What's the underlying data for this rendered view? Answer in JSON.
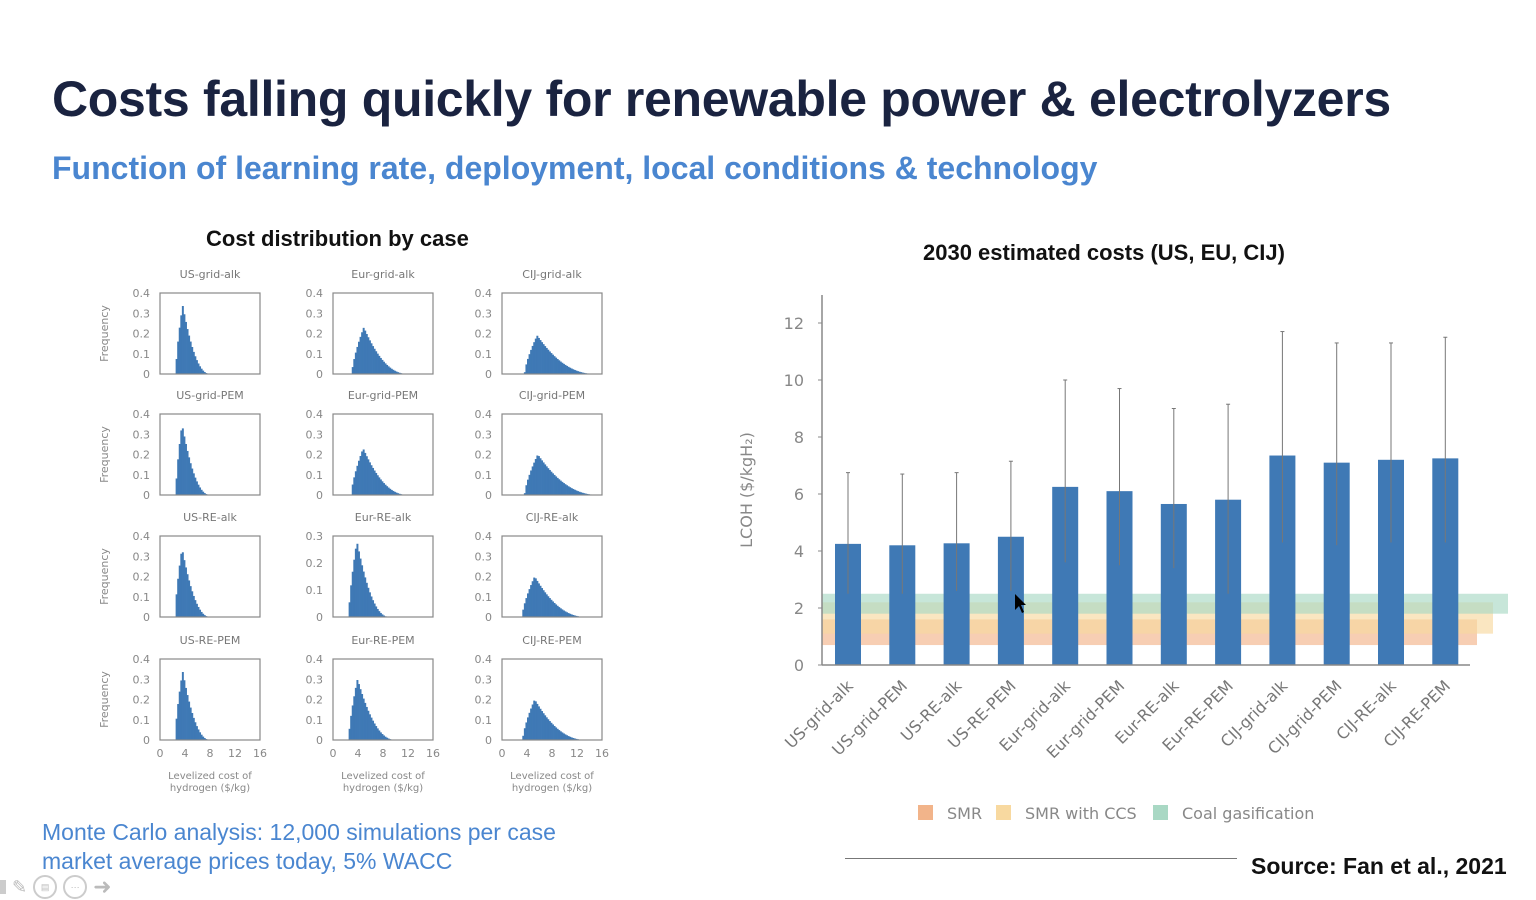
{
  "slide": {
    "title": "Costs falling quickly for renewable power & electrolyzers",
    "subtitle": "Function of learning rate, deployment, local conditions & technology",
    "note_line1": "Monte Carlo analysis: 12,000 simulations per case",
    "note_line2": "market average prices today, 5% WACC",
    "source": "Source: Fan et al., 2021"
  },
  "toolbar": {
    "icons": [
      "pointer-icon",
      "pen-icon",
      "subtitles-icon",
      "more-icon",
      "next-arrow-icon"
    ]
  },
  "chart_data": [
    {
      "type": "histogram",
      "title": "Cost distribution by case",
      "ylabel": "Frequency",
      "xlabel": "Levelized cost of hydrogen ($/kg)",
      "xlim": [
        0,
        16
      ],
      "xticks": [
        "0",
        "4",
        "8",
        "12",
        "16"
      ],
      "color": "#3f79b5",
      "panels": [
        {
          "name": "US-grid-alk",
          "ymax": 0.4,
          "yticks": [
            "0.4",
            "0.3",
            "0.2",
            "0.1",
            "0"
          ],
          "start": 2.5,
          "peak": 3.6,
          "peak_freq": 0.34,
          "end": 8
        },
        {
          "name": "Eur-grid-alk",
          "ymax": 0.4,
          "yticks": [
            "0.4",
            "0.3",
            "0.2",
            "0.1",
            "0"
          ],
          "start": 3,
          "peak": 4.9,
          "peak_freq": 0.23,
          "end": 12
        },
        {
          "name": "CIJ-grid-alk",
          "ymax": 0.4,
          "yticks": [
            "0.4",
            "0.3",
            "0.2",
            "0.1",
            "0"
          ],
          "start": 3.6,
          "peak": 5.6,
          "peak_freq": 0.19,
          "end": 15
        },
        {
          "name": "US-grid-PEM",
          "ymax": 0.4,
          "yticks": [
            "0.4",
            "0.3",
            "0.2",
            "0.1",
            "0"
          ],
          "start": 2.5,
          "peak": 3.5,
          "peak_freq": 0.35,
          "end": 8
        },
        {
          "name": "Eur-grid-PEM",
          "ymax": 0.4,
          "yticks": [
            "0.4",
            "0.3",
            "0.2",
            "0.1",
            "0"
          ],
          "start": 2.9,
          "peak": 4.8,
          "peak_freq": 0.23,
          "end": 12
        },
        {
          "name": "CIJ-grid-PEM",
          "ymax": 0.4,
          "yticks": [
            "0.4",
            "0.3",
            "0.2",
            "0.1",
            "0"
          ],
          "start": 3.6,
          "peak": 5.7,
          "peak_freq": 0.2,
          "end": 15.5
        },
        {
          "name": "US-RE-alk",
          "ymax": 0.4,
          "yticks": [
            "0.4",
            "0.3",
            "0.2",
            "0.1",
            "0"
          ],
          "start": 2.4,
          "peak": 3.5,
          "peak_freq": 0.34,
          "end": 8
        },
        {
          "name": "Eur-RE-alk",
          "ymax": 0.3,
          "yticks": [
            "0.3",
            "0.2",
            "0.1",
            "0"
          ],
          "start": 2.5,
          "peak": 3.8,
          "peak_freq": 0.28,
          "end": 9
        },
        {
          "name": "CIJ-RE-alk",
          "ymax": 0.4,
          "yticks": [
            "0.4",
            "0.3",
            "0.2",
            "0.1",
            "0"
          ],
          "start": 3.2,
          "peak": 5.2,
          "peak_freq": 0.2,
          "end": 13.5
        },
        {
          "name": "US-RE-PEM",
          "ymax": 0.4,
          "yticks": [
            "0.4",
            "0.3",
            "0.2",
            "0.1",
            "0"
          ],
          "start": 2.4,
          "peak": 3.6,
          "peak_freq": 0.34,
          "end": 8
        },
        {
          "name": "Eur-RE-PEM",
          "ymax": 0.4,
          "yticks": [
            "0.4",
            "0.3",
            "0.2",
            "0.1",
            "0"
          ],
          "start": 2.5,
          "peak": 3.9,
          "peak_freq": 0.3,
          "end": 10
        },
        {
          "name": "CIJ-RE-PEM",
          "ymax": 0.4,
          "yticks": [
            "0.4",
            "0.3",
            "0.2",
            "0.1",
            "0"
          ],
          "start": 3.3,
          "peak": 5.2,
          "peak_freq": 0.2,
          "end": 13.5
        }
      ]
    },
    {
      "type": "bar",
      "title": "2030 estimated costs (US, EU, CIJ)",
      "ylabel": "LCOH ($/kgH₂)",
      "ylim": [
        0,
        13
      ],
      "yticks": [
        "0",
        "2",
        "4",
        "6",
        "8",
        "10",
        "12"
      ],
      "color": "#3f79b5",
      "categories": [
        "US-grid-alk",
        "US-grid-PEM",
        "US-RE-alk",
        "US-RE-PEM",
        "Eur-grid-alk",
        "Eur-grid-PEM",
        "Eur-RE-alk",
        "Eur-RE-PEM",
        "CIJ-grid-alk",
        "CIJ-grid-PEM",
        "CIJ-RE-alk",
        "CIJ-RE-PEM"
      ],
      "values": [
        4.25,
        4.2,
        4.27,
        4.5,
        6.25,
        6.1,
        5.65,
        5.8,
        7.35,
        7.1,
        7.2,
        7.25
      ],
      "error_high": [
        6.75,
        6.7,
        6.75,
        7.15,
        10.0,
        9.7,
        9.0,
        9.15,
        11.7,
        11.3,
        11.3,
        11.5
      ],
      "error_low": [
        2.5,
        2.5,
        2.6,
        2.6,
        3.6,
        3.5,
        3.4,
        2.5,
        4.3,
        4.2,
        4.3,
        4.3
      ],
      "reference_bands": [
        {
          "name": "SMR",
          "low": 0.7,
          "high": 1.6,
          "color": "#f2b48a"
        },
        {
          "name": "SMR with CCS",
          "low": 1.1,
          "high": 2.2,
          "color": "#f8d9a0"
        },
        {
          "name": "Coal gasification",
          "low": 1.8,
          "high": 2.5,
          "color": "#a9d8c4"
        }
      ],
      "legend_position": "bottom"
    }
  ]
}
